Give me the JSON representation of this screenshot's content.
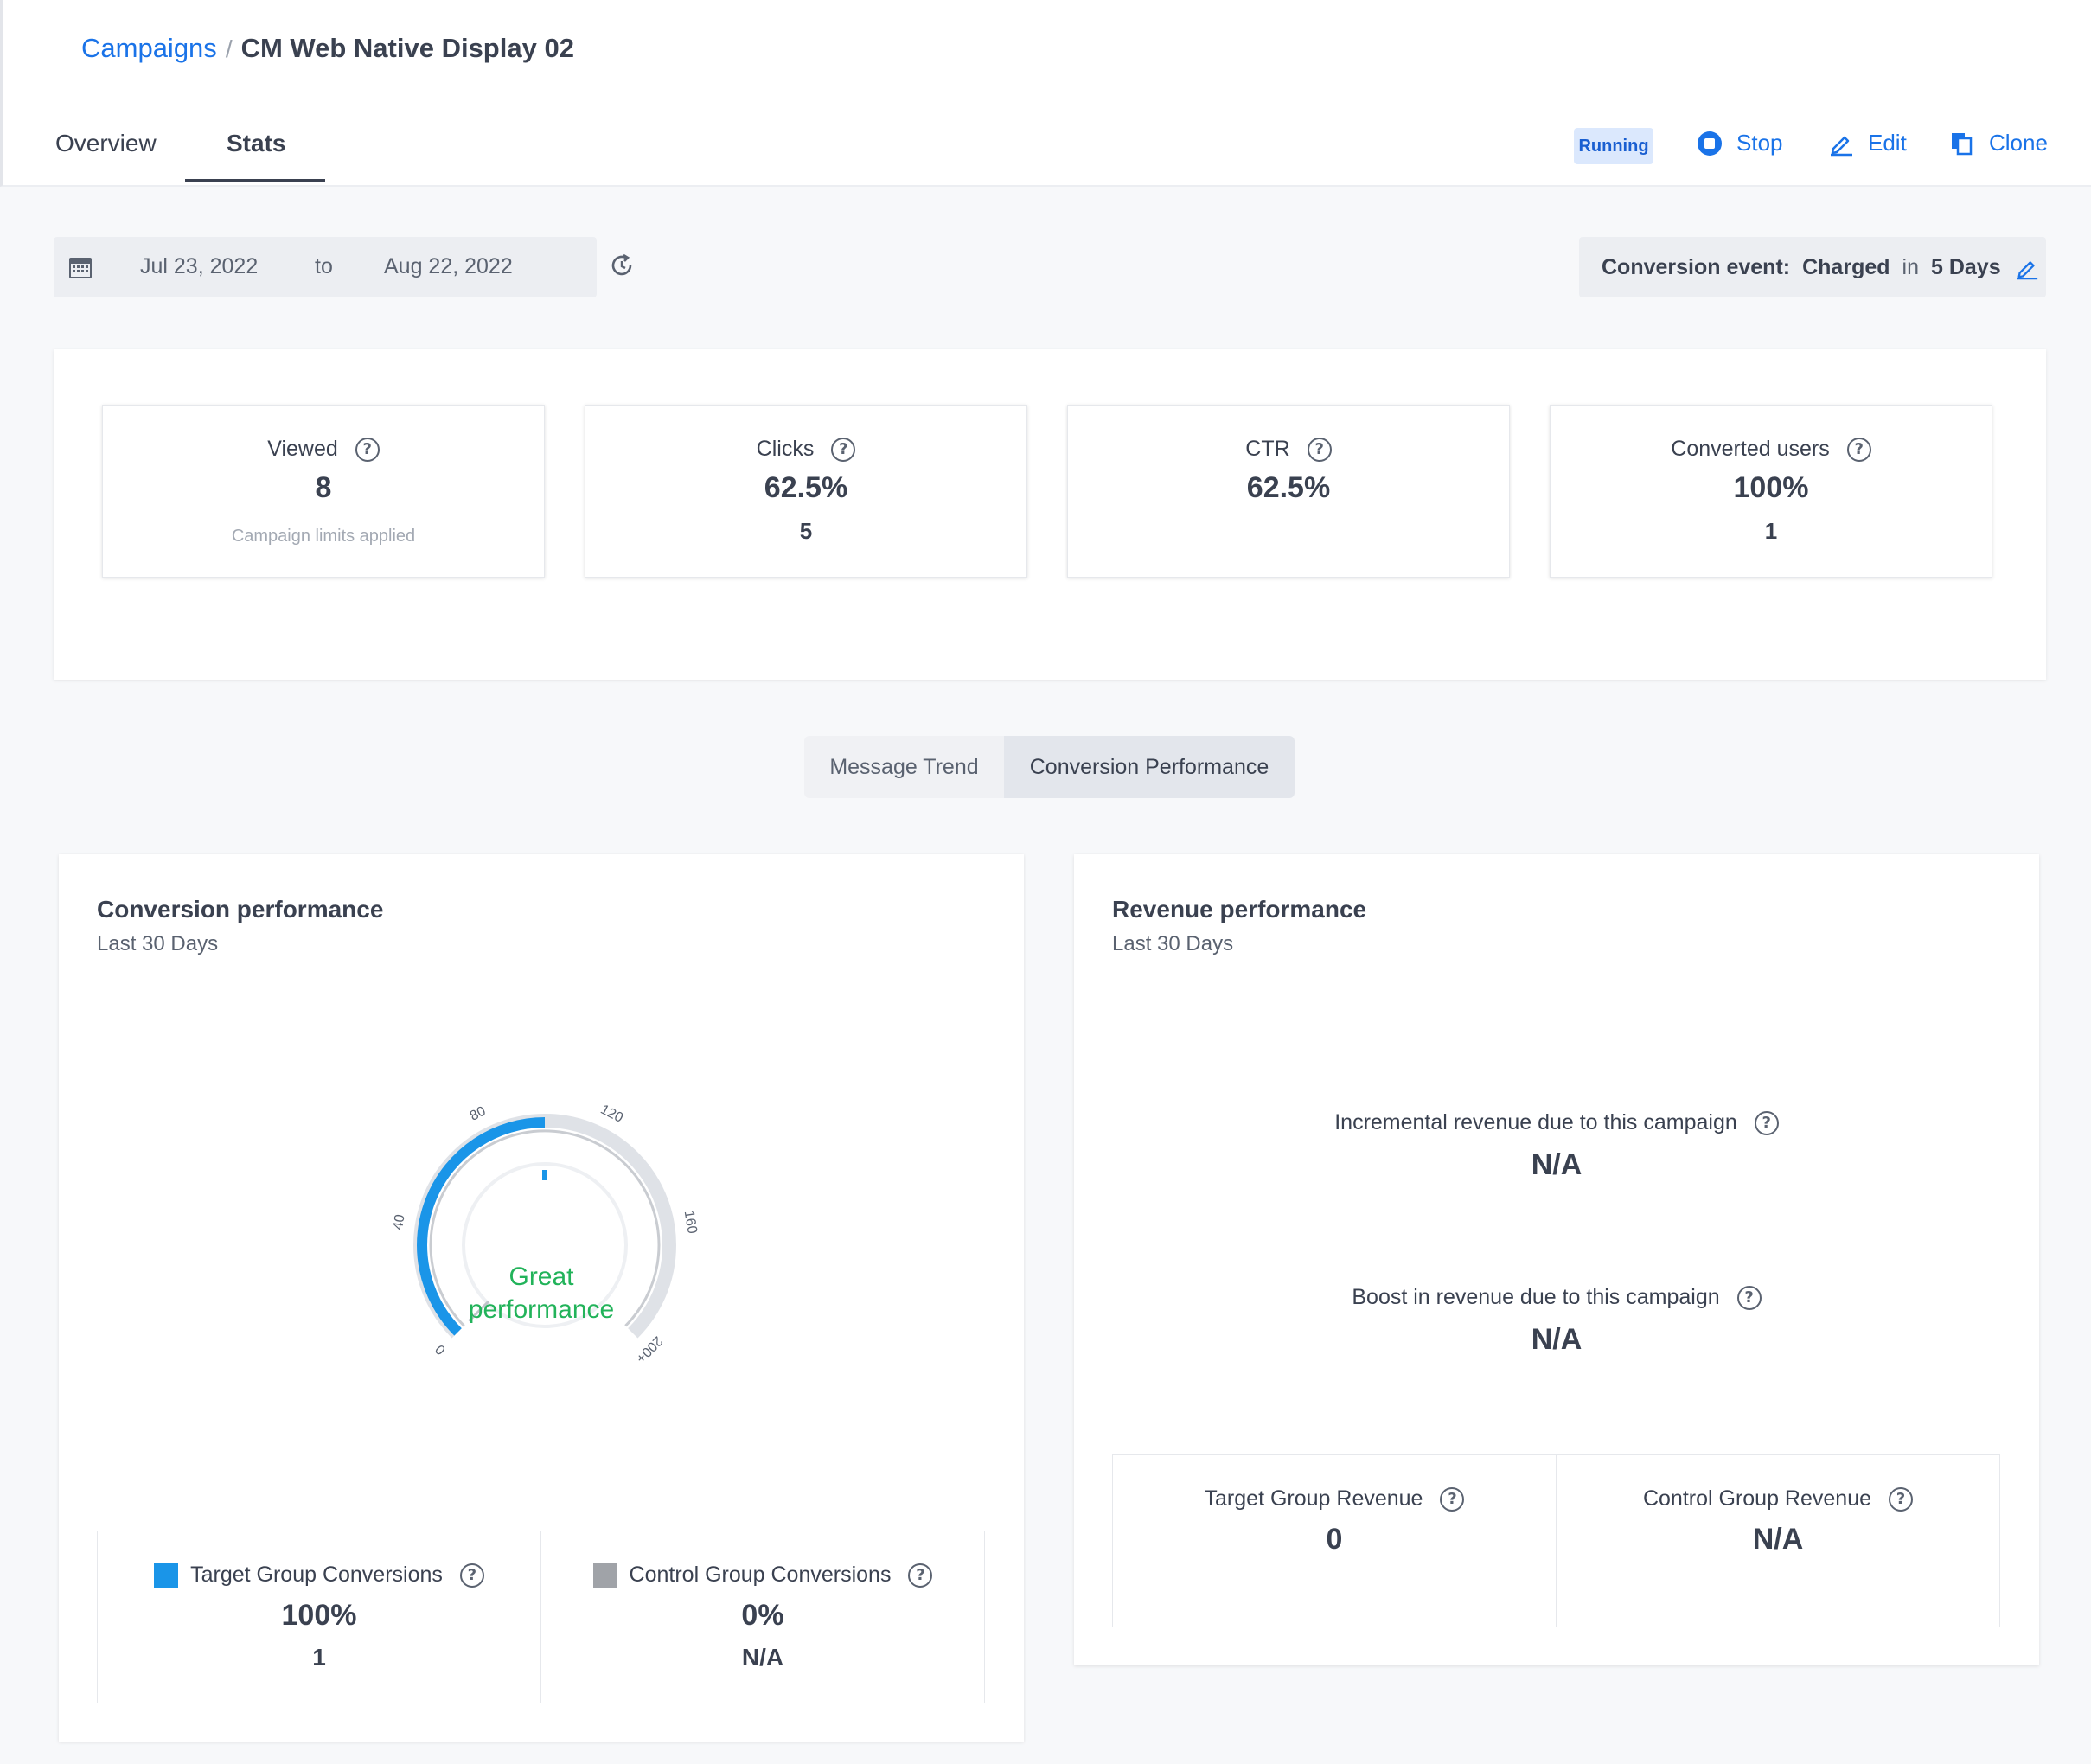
{
  "breadcrumb": {
    "parent": "Campaigns",
    "separator": "/",
    "current": "CM Web Native Display 02"
  },
  "tabs": [
    {
      "label": "Overview"
    },
    {
      "label": "Stats"
    }
  ],
  "status": "Running",
  "actions": {
    "stop": "Stop",
    "edit": "Edit",
    "clone": "Clone"
  },
  "date_range": {
    "from": "Jul 23, 2022",
    "to_label": "to",
    "to": "Aug 22, 2022"
  },
  "conversion_event": {
    "label": "Conversion event:",
    "event": "Charged",
    "in_label": "in",
    "window": "5 Days"
  },
  "stats": [
    {
      "label": "Viewed",
      "value": "8",
      "note": "Campaign limits applied"
    },
    {
      "label": "Clicks",
      "value": "62.5%",
      "sub": "5"
    },
    {
      "label": "CTR",
      "value": "62.5%"
    },
    {
      "label": "Converted users",
      "value": "100%",
      "sub": "1"
    }
  ],
  "segments": {
    "message_trend": "Message Trend",
    "conversion_performance": "Conversion Performance"
  },
  "conversion_panel": {
    "title": "Conversion performance",
    "subtitle": "Last 30 Days",
    "gauge": {
      "ticks": [
        "0",
        "40",
        "80",
        "120",
        "160",
        "200+"
      ],
      "max": 200,
      "value": 100,
      "text_line1": "Great",
      "text_line2": "performance",
      "fill_color": "#1a95e8",
      "text_color": "#22b35a"
    },
    "target": {
      "label": "Target Group Conversions",
      "value": "100%",
      "count": "1",
      "color": "#1a95e8"
    },
    "control": {
      "label": "Control Group Conversions",
      "value": "0%",
      "count": "N/A",
      "color": "#a0a3a8"
    }
  },
  "revenue_panel": {
    "title": "Revenue performance",
    "subtitle": "Last 30 Days",
    "incremental": {
      "label": "Incremental revenue due to this campaign",
      "value": "N/A"
    },
    "boost": {
      "label": "Boost in revenue due to this campaign",
      "value": "N/A"
    },
    "target_revenue": {
      "label": "Target Group Revenue",
      "value": "0"
    },
    "control_revenue": {
      "label": "Control Group Revenue",
      "value": "N/A"
    }
  },
  "icons": {
    "help": "?"
  }
}
